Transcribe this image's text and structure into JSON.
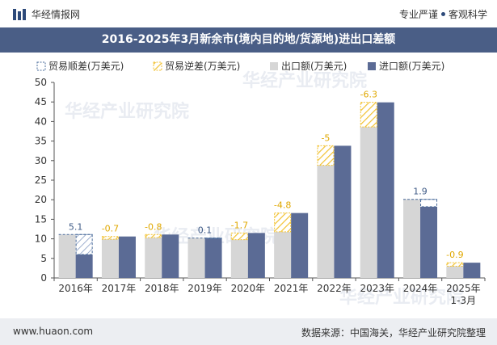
{
  "header": {
    "brand": "华经情报网",
    "tagline_left": "专业严谨",
    "tagline_right": "客观科学"
  },
  "footer": {
    "website": "www.huaon.com",
    "source": "数据来源：中国海关，华经产业研究院整理"
  },
  "watermark": "华经产业研究院",
  "colors": {
    "title_bg": "#4a5e86",
    "export": "#d6d6d6",
    "import": "#5b6b95",
    "surplus_border": "#4a6c9b",
    "deficit_hatch": "#f2c233",
    "deficit_label": "#e0a800",
    "surplus_label": "#3e5a86"
  },
  "chart_data": {
    "type": "bar",
    "title": "2016-2025年3月新余市(境内目的地/货源地)进出口差额",
    "categories": [
      "2016年",
      "2017年",
      "2018年",
      "2019年",
      "2020年",
      "2021年",
      "2022年",
      "2023年",
      "2024年",
      "2025年\n1-3月"
    ],
    "series": [
      {
        "name": "出口额(万美元)",
        "values": [
          11.1,
          9.9,
          10.3,
          10.2,
          9.8,
          11.8,
          28.8,
          38.6,
          20.1,
          3.0
        ]
      },
      {
        "name": "进口额(万美元)",
        "values": [
          6.0,
          10.6,
          11.1,
          10.1,
          11.5,
          16.6,
          33.8,
          44.9,
          18.2,
          3.9
        ]
      }
    ],
    "balance": {
      "values": [
        5.1,
        -0.7,
        -0.8,
        0.1,
        -1.7,
        -4.8,
        -5,
        -6.3,
        1.9,
        -0.9
      ],
      "labels": [
        "5.1",
        "-0.7",
        "-0.8",
        "0.1",
        "-1.7",
        "-4.8",
        "-5",
        "-6.3",
        "1.9",
        "-0.9"
      ]
    },
    "legend": [
      "贸易顺差(万美元)",
      "贸易逆差(万美元)",
      "出口额(万美元)",
      "进口额(万美元)"
    ],
    "legend_position": "top-left",
    "ylim": [
      0,
      50
    ],
    "yticks": [
      0,
      5,
      10,
      15,
      20,
      25,
      30,
      35,
      40,
      45,
      50
    ],
    "grid": false
  }
}
